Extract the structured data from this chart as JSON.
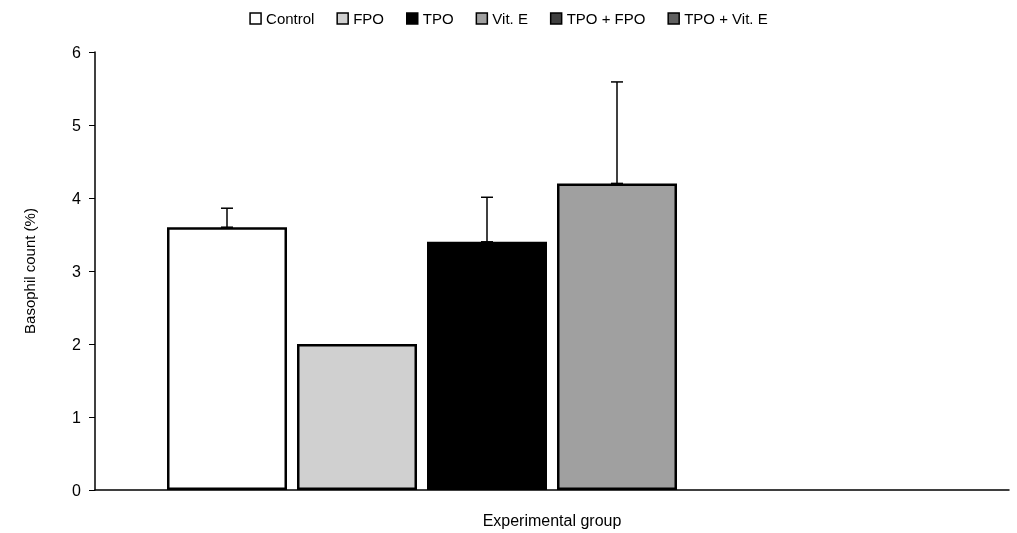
{
  "chart_data": {
    "type": "bar",
    "xlabel": "Experimental group",
    "ylabel": "Basophil count (%)",
    "categories": [
      null
    ],
    "series": [
      {
        "name": "Control",
        "color": "#ffffff",
        "values": [
          3.6
        ],
        "errors": [
          [
            3.6,
            3.86
          ]
        ]
      },
      {
        "name": "FPO",
        "color": "#d0d0d0",
        "values": [
          2.0
        ],
        "errors": [
          null
        ]
      },
      {
        "name": "TPO",
        "color": "#000000",
        "values": [
          3.4
        ],
        "errors": [
          [
            3.4,
            4.01
          ]
        ]
      },
      {
        "name": "Vit. E",
        "color": "#a0a0a0",
        "values": [
          4.2
        ],
        "errors": [
          [
            4.2,
            5.59
          ]
        ]
      },
      {
        "name": "TPO + FPO",
        "color": "#404040",
        "values": [
          null
        ],
        "errors": [
          null
        ]
      },
      {
        "name": "TPO + Vit. E",
        "color": "#606060",
        "values": [
          null
        ],
        "errors": [
          null
        ]
      }
    ],
    "ylim": [
      0,
      6
    ],
    "yticks": [
      0,
      1,
      2,
      3,
      4,
      5,
      6
    ],
    "grid": false,
    "legend": "top"
  }
}
